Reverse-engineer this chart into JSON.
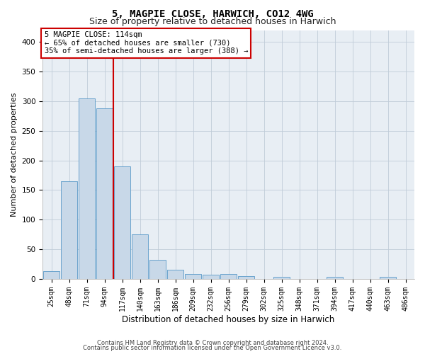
{
  "title": "5, MAGPIE CLOSE, HARWICH, CO12 4WG",
  "subtitle": "Size of property relative to detached houses in Harwich",
  "xlabel": "Distribution of detached houses by size in Harwich",
  "ylabel": "Number of detached properties",
  "categories": [
    "25sqm",
    "48sqm",
    "71sqm",
    "94sqm",
    "117sqm",
    "140sqm",
    "163sqm",
    "186sqm",
    "209sqm",
    "232sqm",
    "256sqm",
    "279sqm",
    "302sqm",
    "325sqm",
    "348sqm",
    "371sqm",
    "394sqm",
    "417sqm",
    "440sqm",
    "463sqm",
    "486sqm"
  ],
  "values": [
    13,
    165,
    305,
    288,
    190,
    75,
    32,
    16,
    8,
    7,
    8,
    5,
    0,
    4,
    0,
    0,
    3,
    0,
    0,
    3,
    0
  ],
  "bar_color": "#c8d8e8",
  "bar_edge_color": "#5a9ac8",
  "marker_line_index": 4,
  "marker_label": "5 MAGPIE CLOSE: 114sqm",
  "annotation_line1": "← 65% of detached houses are smaller (730)",
  "annotation_line2": "35% of semi-detached houses are larger (388) →",
  "annotation_box_color": "#ffffff",
  "annotation_box_edge": "#cc0000",
  "marker_line_color": "#cc0000",
  "footer1": "Contains HM Land Registry data © Crown copyright and database right 2024.",
  "footer2": "Contains public sector information licensed under the Open Government Licence v3.0.",
  "background_color": "#e8eef4",
  "ylim": [
    0,
    420
  ],
  "yticks": [
    0,
    50,
    100,
    150,
    200,
    250,
    300,
    350,
    400
  ],
  "title_fontsize": 10,
  "subtitle_fontsize": 9,
  "tick_fontsize": 7,
  "ylabel_fontsize": 8,
  "xlabel_fontsize": 8.5,
  "footer_fontsize": 6,
  "annotation_fontsize": 7.5
}
